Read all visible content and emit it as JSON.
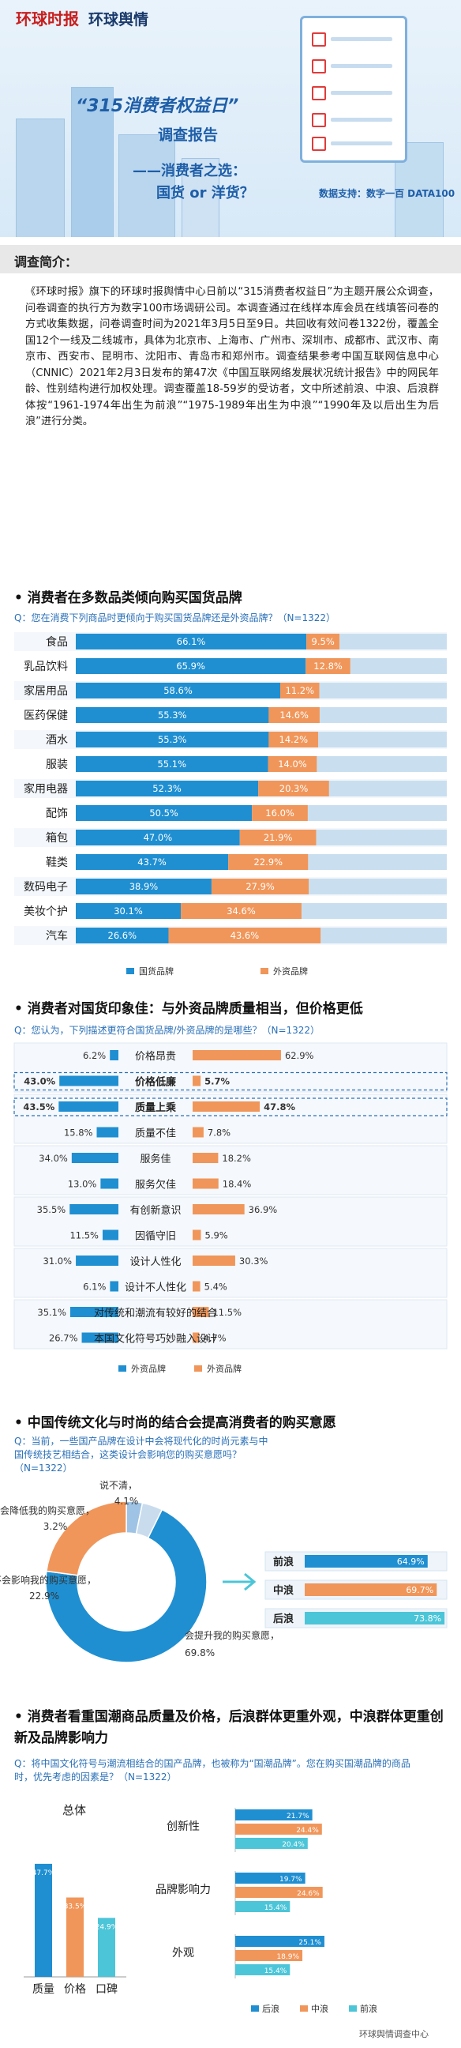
{
  "header": {
    "logo_main": "环球时报",
    "logo_sub": "环球舆情",
    "title": "“315消费者权益日”",
    "subtitle": "调查报告",
    "subtitle2": "——消费者之选：",
    "subtitle3": "国货 or 洋货？",
    "credit": "数据支持：数字一百  DATA100"
  },
  "intro": {
    "heading": "调查简介：",
    "text": "《环球时报》旗下的环球时报舆情中心日前以“315消费者权益日”为主题开展公众调查，问卷调查的执行方为数字100市场调研公司。本调查通过在线样本库会员在线填答问卷的方式收集数据，问卷调查时间为2021年3月5日至9日。共回收有效问卷1322份，覆盖全国12个一线及二线城市，具体为北京市、上海市、广州市、深圳市、成都市、武汉市、南京市、西安市、昆明市、沈阳市、青岛市和郑州市。调查结果参考中国互联网信息中心（CNNIC）2021年2月3日发布的第47次《中国互联网络发展状况统计报告》中的网民年龄、性别结构进行加权处理。调查覆盖18-59岁的受访者，文中所述前浪、中浪、后浪群体按“1961-1974年出生为前浪”“1975-1989年出生为中浪”“1990年及以后出生为后浪”进行分类。"
  },
  "colors": {
    "domestic": "#1f8fd1",
    "foreign": "#f0965a",
    "teal": "#4cc5d8",
    "orange": "#f0965a",
    "blue": "#1f8fd1"
  },
  "chart_data": [
    {
      "type": "bar",
      "title": "消费者在多数品类倾向购买国货品牌",
      "question": "Q：您在消费下列商品时更倾向于购买国货品牌还是外资品牌？（N=1322）",
      "categories": [
        "食品",
        "乳品饮料",
        "家居用品",
        "医药保健",
        "酒水",
        "服装",
        "家用电器",
        "配饰",
        "箱包",
        "鞋类",
        "数码电子",
        "美妆个护",
        "汽车"
      ],
      "series": [
        {
          "name": "国货品牌",
          "values": [
            66.1,
            65.9,
            58.6,
            55.3,
            55.3,
            55.1,
            52.3,
            50.5,
            47.0,
            43.7,
            38.9,
            30.1,
            26.6
          ]
        },
        {
          "name": "外资品牌",
          "values": [
            9.5,
            12.8,
            11.2,
            14.6,
            14.2,
            14.0,
            20.3,
            16.0,
            21.9,
            22.9,
            27.9,
            34.6,
            43.6
          ]
        }
      ],
      "labels": [
        "66.1%",
        "65.9%",
        "58.6%",
        "55.3%",
        "55.3%",
        "55.1%",
        "52.3%",
        "50.5%",
        "47.0%",
        "43.7%",
        "38.9%",
        "30.1%",
        "26.6%"
      ],
      "labels2": [
        "9.5%",
        "12.8%",
        "11.2%",
        "14.6%",
        "14.2%",
        "14.0%",
        "20.3%",
        "16.0%",
        "21.9%",
        "22.9%",
        "27.9%",
        "34.6%",
        "43.6%"
      ]
    },
    {
      "type": "bar",
      "title": "消费者对国货印象佳：与外资品牌质量相当，但价格更低",
      "question": "Q：您认为，下列描述更符合国货品牌/外资品牌的是哪些？（N=1322）",
      "categories": [
        "价格昂贵",
        "价格低廉",
        "质量上乘",
        "质量不佳",
        "服务佳",
        "服务欠佳",
        "有创新意识",
        "因循守旧",
        "设计人性化",
        "设计不人性化",
        "对传统和潮流有较好的结合",
        "本国文化符号巧妙融入设计"
      ],
      "series": [
        {
          "name": "外资品牌",
          "values": [
            6.2,
            43.0,
            43.5,
            15.8,
            34.0,
            13.0,
            35.5,
            11.5,
            31.0,
            6.1,
            35.1,
            26.7
          ]
        },
        {
          "name": "外资品牌",
          "values": [
            62.9,
            5.7,
            47.8,
            7.8,
            18.2,
            18.4,
            36.9,
            5.9,
            30.3,
            5.4,
            11.5,
            4.7
          ]
        }
      ],
      "labels": [
        "6.2%",
        "43.0%",
        "43.5%",
        "15.8%",
        "34.0%",
        "13.0%",
        "35.5%",
        "11.5%",
        "31.0%",
        "6.1%",
        "35.1%",
        "26.7%"
      ],
      "labels2": [
        "62.9%",
        "5.7%",
        "47.8%",
        "7.8%",
        "18.2%",
        "18.4%",
        "36.9%",
        "5.9%",
        "30.3%",
        "5.4%",
        "11.5%",
        "4.7%"
      ],
      "highlight": [
        1,
        2
      ]
    },
    {
      "type": "pie",
      "title": "中国传统文化与时尚的结合会提高消费者的购买意愿",
      "question": "Q：当前，一些国产品牌在设计中会将现代化的时尚元素与中国传统技艺相结合，这类设计会影响您的购买意愿吗？（N=1322）",
      "slices": [
        {
          "label": "会提升我的购买意愿，",
          "value": 69.8,
          "text": "69.8%"
        },
        {
          "label": "不会影响我的购买意愿，",
          "value": 22.9,
          "text": "22.9%"
        },
        {
          "label": "会降低我的购买意愿，",
          "value": 3.2,
          "text": "3.2%"
        },
        {
          "label": "说不清，",
          "value": 4.1,
          "text": "4.1%"
        }
      ],
      "breakdown": {
        "categories": [
          "前浪",
          "中浪",
          "后浪"
        ],
        "values": [
          64.9,
          69.7,
          73.8
        ],
        "labels": [
          "64.9%",
          "69.7%",
          "73.8%"
        ]
      }
    },
    {
      "type": "bar",
      "title": "消费者看重国潮商品质量及价格，后浪群体更重外观，中浪群体更重创新及品牌影响力",
      "question": "Q：将中国文化符号与潮流相结合的国产品牌，也被称为“国潮品牌”。您在购买国潮品牌的商品时，优先考虑的因素是？（N=1322）",
      "total_title": "总体",
      "total": {
        "categories": [
          "质量",
          "价格",
          "口碑"
        ],
        "values": [
          47.7,
          33.5,
          24.9
        ],
        "labels": [
          "47.7%",
          "33.5%",
          "24.9%"
        ]
      },
      "groups": {
        "categories": [
          "创新性",
          "品牌影响力",
          "外观"
        ],
        "series": [
          {
            "name": "后浪",
            "values": [
              21.7,
              19.7,
              25.1
            ],
            "labels": [
              "21.7%",
              "19.7%",
              "25.1%"
            ]
          },
          {
            "name": "中浪",
            "values": [
              24.4,
              24.6,
              18.9
            ],
            "labels": [
              "24.4%",
              "24.6%",
              "18.9%"
            ]
          },
          {
            "name": "前浪",
            "values": [
              20.4,
              15.4,
              15.4
            ],
            "labels": [
              "20.4%",
              "15.4%",
              "15.4%"
            ]
          }
        ]
      }
    }
  ],
  "footer": "环球舆情调查中心"
}
